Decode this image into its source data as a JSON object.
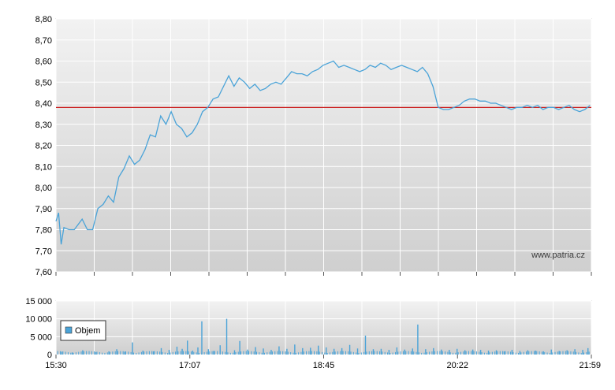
{
  "chart_data": [
    {
      "type": "line",
      "name": "price",
      "x_ticks": [
        "15:30",
        "17:07",
        "18:45",
        "20:22",
        "21:59"
      ],
      "y_ticks": [
        "7,60",
        "7,70",
        "7,80",
        "7,90",
        "8,00",
        "8,10",
        "8,20",
        "8,30",
        "8,40",
        "8,50",
        "8,60",
        "8,70",
        "8,80"
      ],
      "ylim": [
        7.6,
        8.8
      ],
      "reference_line": 8.38,
      "watermark": "www.patria.cz",
      "colors": {
        "line": "#4aa3d8",
        "reference": "#cc2222",
        "grid": "#ffffff"
      },
      "x_minutes": [
        0,
        2,
        4,
        6,
        10,
        14,
        20,
        24,
        28,
        32,
        36,
        40,
        44,
        48,
        52,
        56,
        60,
        64,
        68,
        72,
        76,
        80,
        84,
        88,
        92,
        96,
        100,
        104,
        108,
        112,
        116,
        120,
        124,
        128,
        132,
        136,
        140,
        144,
        148,
        152,
        156,
        160,
        164,
        168,
        172,
        176,
        180,
        184,
        188,
        192,
        196,
        200,
        204,
        208,
        212,
        216,
        220,
        224,
        228,
        232,
        236,
        240,
        244,
        248,
        252,
        256,
        260,
        264,
        268,
        272,
        276,
        280,
        284,
        288,
        292,
        296,
        300,
        304,
        308,
        312,
        316,
        320,
        324,
        328,
        332,
        336,
        340,
        344,
        348,
        352,
        356,
        360,
        364,
        368,
        372,
        376,
        380,
        384,
        388,
        392,
        396,
        400,
        404,
        408
      ],
      "values": [
        7.84,
        7.88,
        7.73,
        7.81,
        7.8,
        7.8,
        7.85,
        7.8,
        7.8,
        7.9,
        7.92,
        7.96,
        7.93,
        8.05,
        8.09,
        8.15,
        8.11,
        8.13,
        8.18,
        8.25,
        8.24,
        8.34,
        8.3,
        8.36,
        8.3,
        8.28,
        8.24,
        8.26,
        8.3,
        8.36,
        8.38,
        8.42,
        8.43,
        8.48,
        8.53,
        8.48,
        8.52,
        8.5,
        8.47,
        8.49,
        8.46,
        8.47,
        8.49,
        8.5,
        8.49,
        8.52,
        8.55,
        8.54,
        8.54,
        8.53,
        8.55,
        8.56,
        8.58,
        8.59,
        8.6,
        8.57,
        8.58,
        8.57,
        8.56,
        8.55,
        8.56,
        8.58,
        8.57,
        8.59,
        8.58,
        8.56,
        8.57,
        8.58,
        8.57,
        8.56,
        8.55,
        8.57,
        8.54,
        8.48,
        8.38,
        8.37,
        8.37,
        8.38,
        8.39,
        8.41,
        8.42,
        8.42,
        8.41,
        8.41,
        8.4,
        8.4,
        8.39,
        8.38,
        8.37,
        8.38,
        8.38,
        8.39,
        8.38,
        8.39,
        8.37,
        8.38,
        8.38,
        8.37,
        8.38,
        8.39,
        8.37,
        8.36,
        8.37,
        8.39
      ]
    },
    {
      "type": "bar",
      "name": "volume",
      "x_ticks": [
        "15:30",
        "17:07",
        "18:45",
        "20:22",
        "21:59"
      ],
      "y_ticks": [
        "0",
        "5 000",
        "10 000",
        "15 000"
      ],
      "ylim": [
        0,
        15000
      ],
      "legend": "Objem",
      "legend_position": "top-left",
      "colors": {
        "bar": "#4aa3d8"
      },
      "bar_minutes": [
        4,
        12,
        20,
        30,
        40,
        46,
        52,
        58,
        66,
        74,
        80,
        86,
        92,
        96,
        100,
        104,
        108,
        111,
        116,
        120,
        125,
        130,
        136,
        140,
        146,
        152,
        158,
        164,
        170,
        176,
        182,
        188,
        194,
        200,
        206,
        212,
        218,
        224,
        230,
        236,
        242,
        248,
        254,
        260,
        266,
        272,
        276,
        282,
        288,
        294,
        300,
        306,
        312,
        318,
        324,
        330,
        336,
        342,
        348,
        354,
        360,
        366,
        372,
        378,
        384,
        390,
        396,
        402,
        406
      ],
      "bar_values": [
        800,
        600,
        1200,
        700,
        900,
        1500,
        800,
        3400,
        1100,
        900,
        1800,
        1300,
        2200,
        1600,
        3900,
        1100,
        2000,
        9300,
        1500,
        1000,
        2600,
        10000,
        1200,
        3800,
        1400,
        2100,
        1700,
        1300,
        2300,
        1600,
        2800,
        1800,
        1900,
        2500,
        2000,
        1600,
        1800,
        2700,
        1700,
        5300,
        1500,
        1600,
        1300,
        2000,
        1400,
        1700,
        8400,
        1500,
        1800,
        1400,
        1300,
        1600,
        1200,
        1400,
        1300,
        1100,
        1200,
        900,
        1300,
        1000,
        1200,
        1100,
        900,
        1400,
        1000,
        1200,
        1500,
        1300,
        1800
      ],
      "baseline_volume": 700
    }
  ]
}
